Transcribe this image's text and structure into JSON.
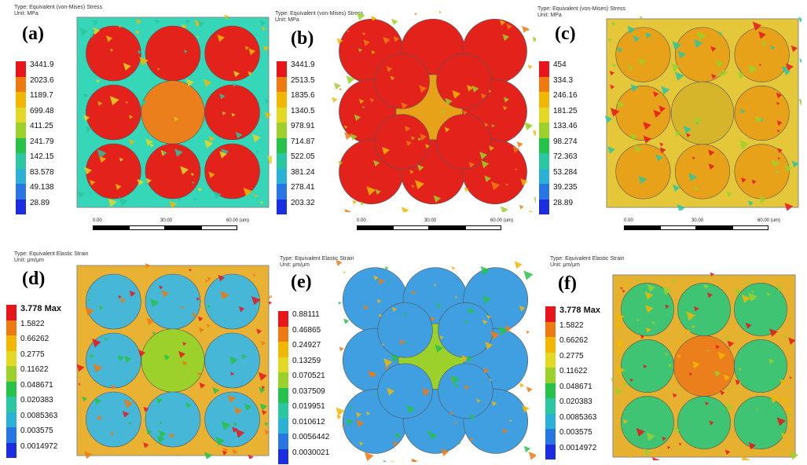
{
  "panels": [
    {
      "id": "a",
      "label": "(a)",
      "type_line": "Type: Equivalent (von-Mises) Stress",
      "unit_line": "Unit: MPa",
      "legend": [
        "3441.9",
        "2023.6",
        "1189.7",
        "699.48",
        "411.25",
        "241.79",
        "142.15",
        "83.578",
        "49.138",
        "28.89"
      ],
      "scale": {
        "t0": "0.00",
        "t1": "30.00",
        "t2": "60.00 (um)"
      }
    },
    {
      "id": "b",
      "label": "(b)",
      "type_line": "Type: Equivalent (von-Mises) Stress",
      "unit_line": "Unit: MPa",
      "legend": [
        "3441.9",
        "2513.5",
        "1835.6",
        "1340.5",
        "978.91",
        "714.87",
        "522.05",
        "381.24",
        "278.41",
        "203.32"
      ],
      "scale": {
        "t0": "0.00",
        "t1": "30.00",
        "t2": "60.00 (um)"
      }
    },
    {
      "id": "c",
      "label": "(c)",
      "type_line": "Type: Equivalent (von-Mises) Stress",
      "unit_line": "Unit: MPa",
      "legend": [
        "454",
        "334.3",
        "246.16",
        "181.25",
        "133.46",
        "98.274",
        "72.363",
        "53.284",
        "39.235",
        "28.89"
      ],
      "scale": {
        "t0": "0.00",
        "t1": "30.00",
        "t2": "60.00 (um)"
      }
    },
    {
      "id": "d",
      "label": "(d)",
      "type_line": "Type: Equivalent Elastic Strain",
      "unit_line": "Unit: μm/μm",
      "legend": [
        "3.778 Max",
        "1.5822",
        "0.66262",
        "0.2775",
        "0.11622",
        "0.048671",
        "0.020383",
        "0.0085363",
        "0.003575",
        "0.0014972"
      ]
    },
    {
      "id": "e",
      "label": "(e)",
      "type_line": "Type: Equivalent Elastic Strain",
      "unit_line": "Unit: μm/μm",
      "legend": [
        "0.88111",
        "0.46865",
        "0.24927",
        "0.13259",
        "0.070521",
        "0.037509",
        "0.019951",
        "0.010612",
        "0.0056442",
        "0.0030021"
      ]
    },
    {
      "id": "f",
      "label": "(f)",
      "type_line": "Type: Equivalent Elastic Strain",
      "unit_line": "Unit: μm/μm",
      "legend": [
        "3.778 Max",
        "1.5822",
        "0.66262",
        "0.2775",
        "0.11622",
        "0.048671",
        "0.020383",
        "0.0085363",
        "0.003575",
        "0.0014972"
      ]
    }
  ],
  "colors": {
    "legend_scale": [
      "#e8151b",
      "#ef7a12",
      "#f2b705",
      "#e3d823",
      "#9bd12a",
      "#27c24a",
      "#2bc7a0",
      "#2bb0d6",
      "#2876e3",
      "#1a2de0"
    ]
  }
}
